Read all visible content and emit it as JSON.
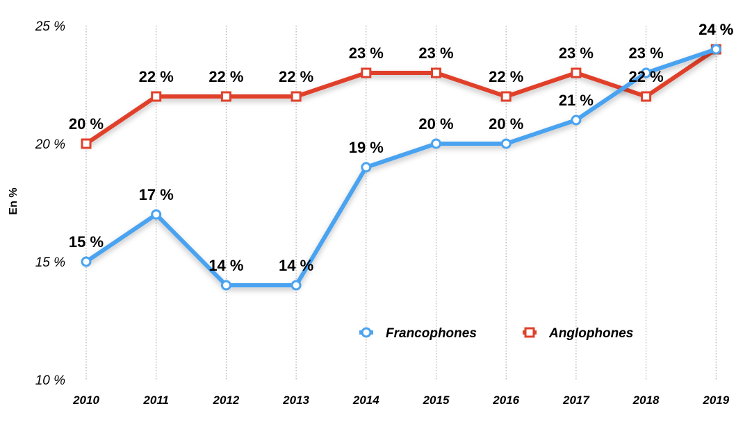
{
  "chart_data": {
    "type": "line",
    "title": "",
    "xlabel": "",
    "ylabel": "En %",
    "x": [
      "2010",
      "2011",
      "2012",
      "2013",
      "2014",
      "2015",
      "2016",
      "2017",
      "2018",
      "2019"
    ],
    "ylim": [
      10,
      25
    ],
    "yticks": [
      10,
      15,
      20,
      25
    ],
    "ytick_labels": [
      "10 %",
      "15 %",
      "20 %",
      "25 %"
    ],
    "grid": "vertical dotted",
    "legend_position": "bottom-right",
    "series": [
      {
        "name": "Francophones",
        "color": "#4aa3f0",
        "marker": "circle",
        "values": [
          15,
          17,
          14,
          14,
          19,
          20,
          20,
          21,
          23,
          24
        ],
        "labels": [
          "15 %",
          "17 %",
          "14 %",
          "14 %",
          "19 %",
          "20 %",
          "20 %",
          "21 %",
          "23 %",
          "24 %"
        ]
      },
      {
        "name": "Anglophones",
        "color": "#e0402a",
        "marker": "square",
        "values": [
          20,
          22,
          22,
          22,
          23,
          23,
          22,
          23,
          22,
          24
        ],
        "labels": [
          "20 %",
          "22 %",
          "22 %",
          "22 %",
          "23 %",
          "23 %",
          "22 %",
          "23 %",
          "22 %",
          "24 %"
        ]
      }
    ]
  }
}
